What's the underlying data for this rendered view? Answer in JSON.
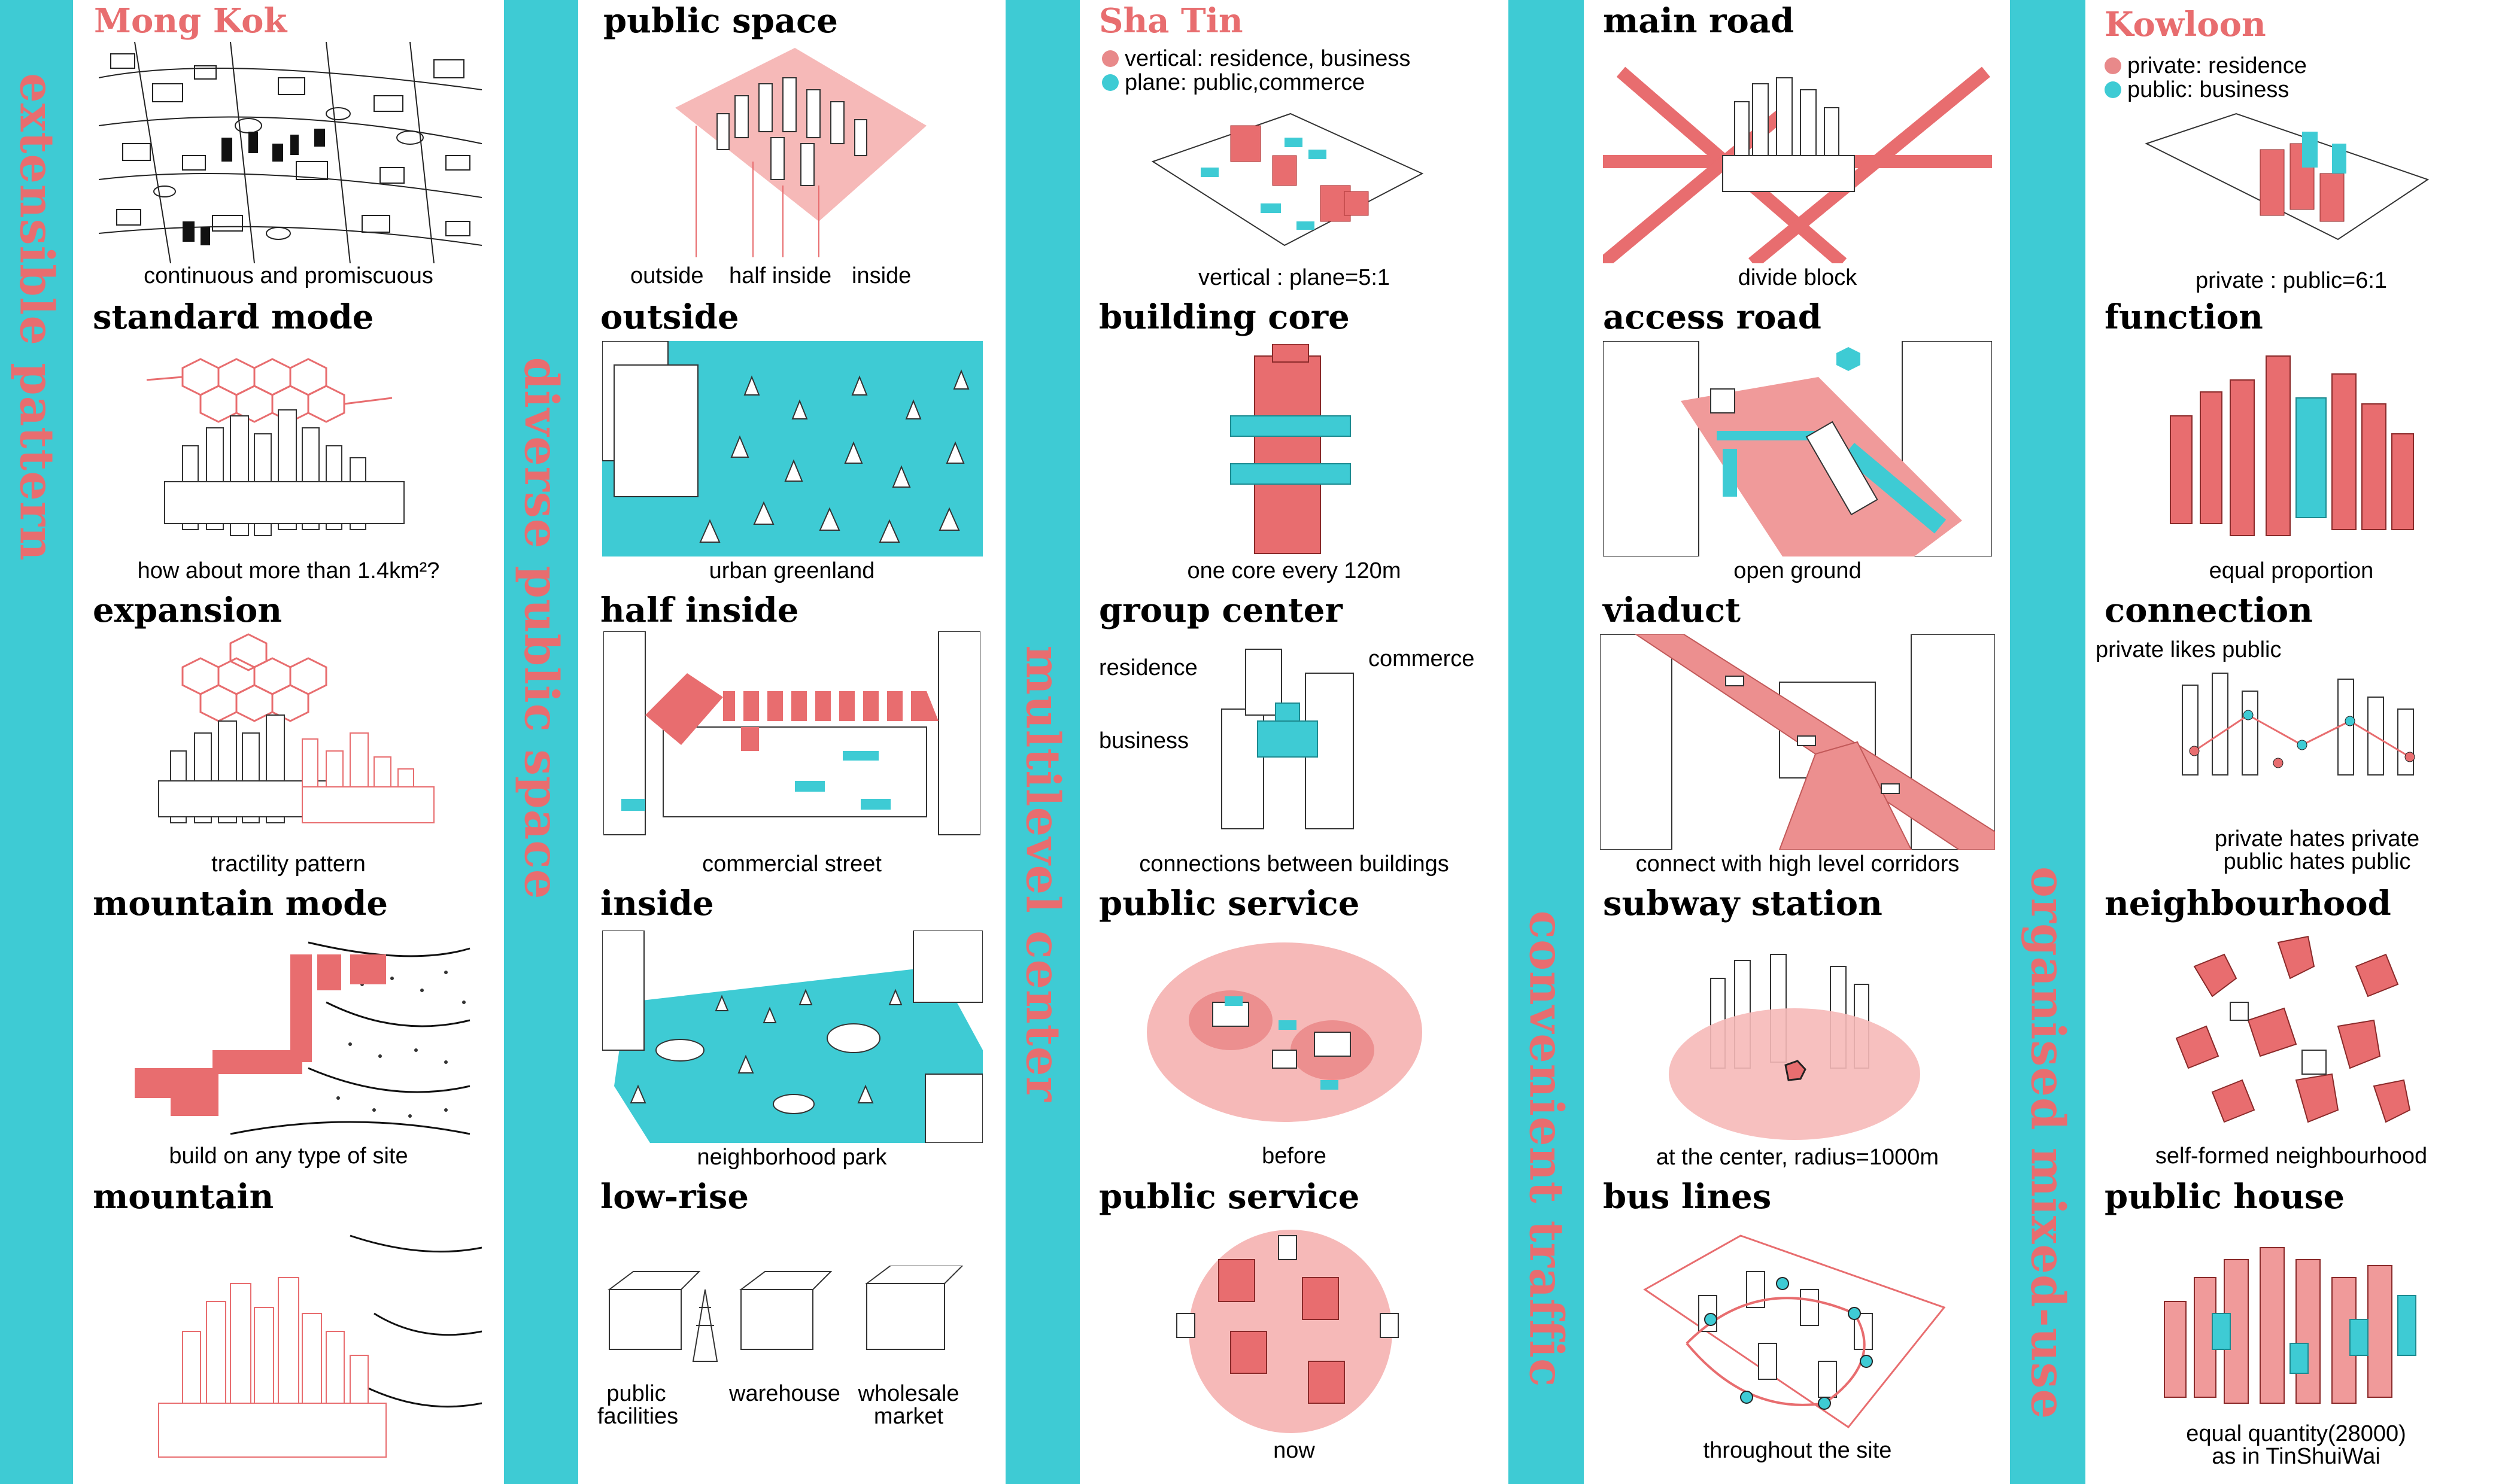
{
  "bands": [
    {
      "title": "extensible pattern"
    },
    {
      "title": "diverse public space"
    },
    {
      "title": "multilevel center"
    },
    {
      "title": "convenient traffic"
    },
    {
      "title": "organised mixed-use"
    }
  ],
  "col1": {
    "mong_kok": {
      "title": "Mong Kok",
      "caption": "continuous and promiscuous"
    },
    "standard_mode": {
      "title": "standard mode",
      "caption": "how about more than 1.4km²?"
    },
    "expansion": {
      "title": "expansion",
      "caption": "tractility pattern"
    },
    "mountain_mode": {
      "title": "mountain mode",
      "caption": "build on any type of site"
    },
    "mountain": {
      "title": "mountain"
    }
  },
  "col2": {
    "public_space": {
      "title": "public space",
      "labels": [
        "outside",
        "half inside",
        "inside"
      ]
    },
    "outside": {
      "title": "outside",
      "caption": "urban greenland"
    },
    "half_inside": {
      "title": "half inside",
      "caption": "commercial street"
    },
    "inside": {
      "title": "inside",
      "caption": "neighborhood park"
    },
    "low_rise": {
      "title": "low-rise",
      "labels": [
        "public facilities",
        "warehouse",
        "wholesale market"
      ]
    }
  },
  "col3": {
    "sha_tin": {
      "title": "Sha Tin",
      "legend": [
        "vertical: residence, business",
        "plane: public,commerce"
      ],
      "caption": "vertical : plane=5:1"
    },
    "building_core": {
      "title": "building core",
      "caption": "one core every 120m"
    },
    "group_center": {
      "title": "group center",
      "labels": {
        "residence": "residence",
        "commerce": "commerce",
        "business": "business"
      },
      "caption": "connections between buildings"
    },
    "public_service_before": {
      "title": "public service",
      "caption": "before"
    },
    "public_service_now": {
      "title": "public service",
      "caption": "now"
    }
  },
  "col4": {
    "main_road": {
      "title": "main road",
      "caption": "divide block"
    },
    "access_road": {
      "title": "access road",
      "caption": "open ground"
    },
    "viaduct": {
      "title": "viaduct",
      "caption": "connect with high level corridors"
    },
    "subway_station": {
      "title": "subway station",
      "caption": "at the center, radius=1000m"
    },
    "bus_lines": {
      "title": "bus lines",
      "caption": "throughout the site"
    }
  },
  "col5": {
    "kowloon": {
      "title": "Kowloon",
      "legend": [
        "private: residence",
        "public: business"
      ],
      "caption": "private : public=6:1"
    },
    "function": {
      "title": "function",
      "caption": "equal proportion"
    },
    "connection": {
      "title": "connection",
      "label_top": "private likes public",
      "label_bottom": "private hates private public  hates public"
    },
    "neighbourhood": {
      "title": "neighbourhood",
      "caption": "self-formed neighbourhood"
    },
    "public_house": {
      "title": "public house",
      "caption": "equal quantity(28000) as in TinShuiWai"
    }
  },
  "colors": {
    "teal": "#3ecbd4",
    "pink": "#e86d6f",
    "light_pink": "#f4b0b0"
  }
}
